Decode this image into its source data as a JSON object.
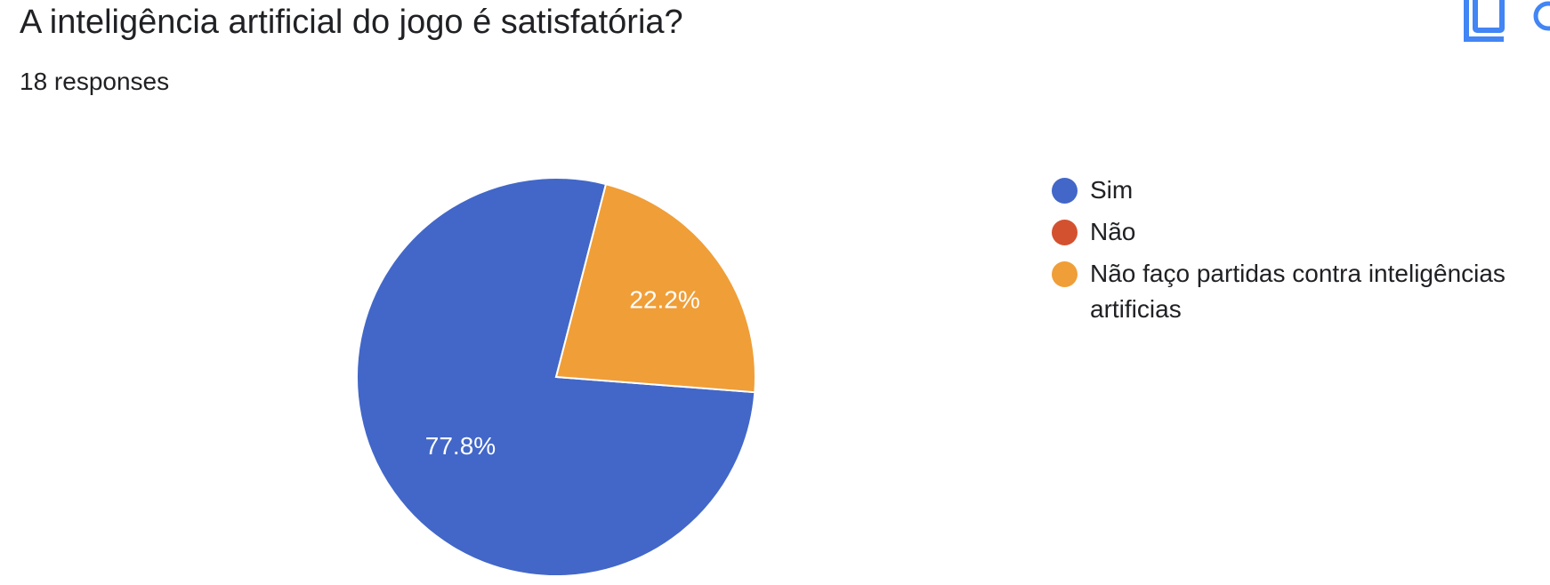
{
  "header": {
    "title": "A inteligência artificial do jogo é satisfatória?",
    "responses": "18 responses"
  },
  "icons": {
    "copy": "copy-icon",
    "extra": "more-icon"
  },
  "colors": {
    "accent": "#4285f4",
    "slice_sim": "#4267c8",
    "slice_nao": "#d4512f",
    "slice_nao_faco": "#f09e38"
  },
  "chart_data": {
    "type": "pie",
    "categories": [
      "Sim",
      "Não",
      "Não faço partidas contra inteligências artificias"
    ],
    "values": [
      77.8,
      0,
      22.2
    ],
    "labels": [
      "77.8%",
      "",
      "22.2%"
    ],
    "colors": [
      "#4267c8",
      "#d4512f",
      "#f09e38"
    ],
    "legend_position": "right",
    "title": "A inteligência artificial do jogo é satisfatória?",
    "subtitle": "18 responses"
  }
}
